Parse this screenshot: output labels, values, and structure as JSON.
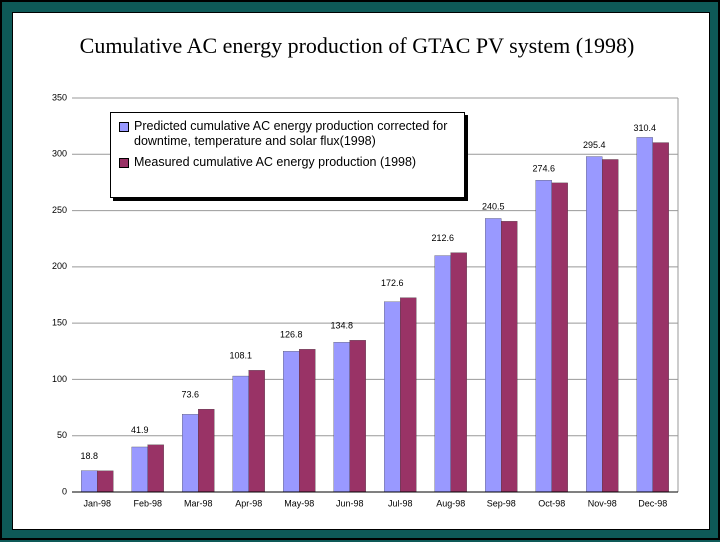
{
  "chart_data": {
    "type": "bar",
    "title": "Cumulative AC energy production of GTAC PV system (1998)",
    "categories": [
      "Jan-98",
      "Feb-98",
      "Mar-98",
      "Apr-98",
      "May-98",
      "Jun-98",
      "Jul-98",
      "Aug-98",
      "Sep-98",
      "Oct-98",
      "Nov-98",
      "Dec-98"
    ],
    "series": [
      {
        "name": "Predicted cumulative AC energy production corrected for downtime, temperature and solar flux(1998)",
        "color": "#9999ff",
        "values": [
          19,
          40,
          69,
          103,
          125,
          133,
          169,
          210,
          243,
          277,
          298,
          315
        ]
      },
      {
        "name": "Measured cumulative AC energy production (1998)",
        "color": "#993366",
        "values": [
          18.8,
          41.9,
          73.6,
          108.1,
          126.8,
          134.8,
          172.6,
          212.6,
          240.5,
          274.6,
          295.4,
          310.4
        ],
        "data_labels": true
      }
    ],
    "ylim": [
      0,
      350
    ],
    "yticks": [
      0,
      50,
      100,
      150,
      200,
      250,
      300,
      350
    ],
    "grid": true,
    "legend": "top-left"
  }
}
